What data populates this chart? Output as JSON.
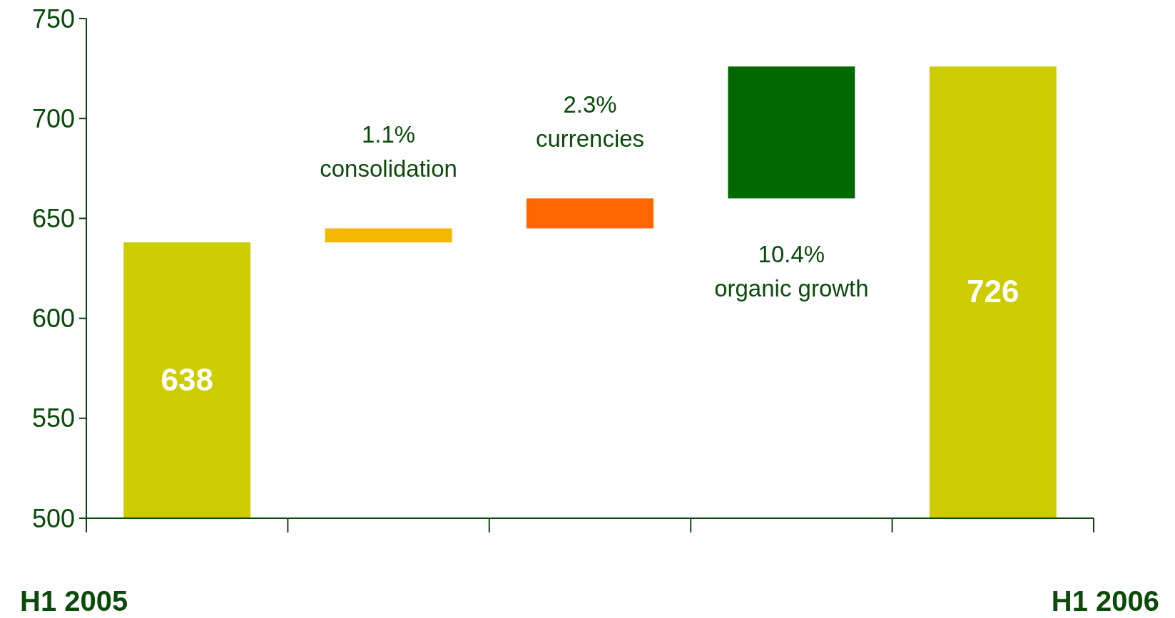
{
  "chart_data": {
    "type": "bar",
    "categories": [
      "H1 2005",
      null,
      null,
      null,
      "H1 2006"
    ],
    "values": [
      638,
      7,
      15,
      66,
      726
    ],
    "base": [
      0,
      638,
      645,
      660,
      0
    ],
    "colors": [
      "#cccc00",
      "#f5b800",
      "#ff6600",
      "#006a00",
      "#cccc00"
    ],
    "value_labels": [
      "638",
      null,
      null,
      null,
      "726"
    ],
    "annotations": [
      "1.1% consolidation",
      "2.3% currencies",
      "10.4% organic growth"
    ],
    "ylim": [
      500,
      750
    ],
    "yticks": [
      500,
      550,
      600,
      650,
      700,
      750
    ],
    "grid": false
  }
}
